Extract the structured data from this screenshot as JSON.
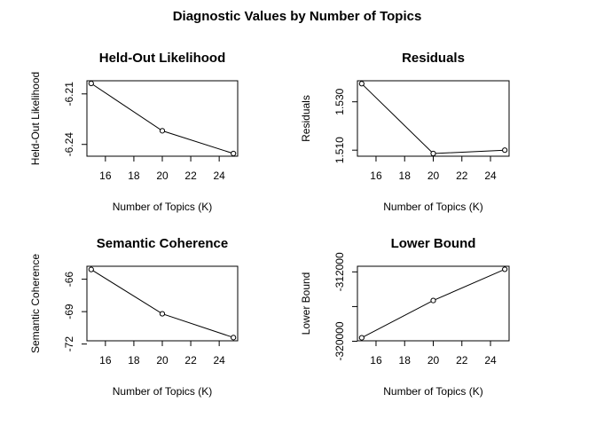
{
  "title": "Diagnostic Values by Number of Topics",
  "chart_data": [
    {
      "type": "line",
      "title": "Held-Out Likelihood",
      "xlabel": "Number of Topics (K)",
      "ylabel": "Held-Out Likelihood",
      "x": [
        15,
        20,
        25
      ],
      "values": [
        -6.2038,
        -6.2319,
        -6.2454
      ],
      "xticks": [
        16,
        18,
        20,
        22,
        24
      ],
      "xtick_labels": [
        "16",
        "18",
        "20",
        "22",
        "24"
      ],
      "yticks": [
        -6.21,
        -6.24
      ],
      "ytick_labels": [
        "-6.21",
        "-6.24"
      ],
      "xlim": [
        14.7,
        25.3
      ],
      "ylim": [
        -6.247,
        -6.2022
      ]
    },
    {
      "type": "line",
      "title": "Residuals",
      "xlabel": "Number of Topics (K)",
      "ylabel": "Residuals",
      "x": [
        15,
        20,
        25
      ],
      "values": [
        1.5375,
        1.5086,
        1.51
      ],
      "xticks": [
        16,
        18,
        20,
        22,
        24
      ],
      "xtick_labels": [
        "16",
        "18",
        "20",
        "22",
        "24"
      ],
      "yticks": [
        1.51,
        1.53
      ],
      "ytick_labels": [
        "1.510",
        "1.530"
      ],
      "xlim": [
        14.7,
        25.3
      ],
      "ylim": [
        1.5075,
        1.5387
      ]
    },
    {
      "type": "line",
      "title": "Semantic Coherence",
      "xlabel": "Number of Topics (K)",
      "ylabel": "Semantic Coherence",
      "x": [
        15,
        20,
        25
      ],
      "values": [
        -65.1,
        -69.2,
        -71.4
      ],
      "xticks": [
        16,
        18,
        20,
        22,
        24
      ],
      "xtick_labels": [
        "16",
        "18",
        "20",
        "22",
        "24"
      ],
      "yticks": [
        -66,
        -69,
        -72
      ],
      "ytick_labels": [
        "-66",
        "-69",
        "-72"
      ],
      "xlim": [
        14.7,
        25.3
      ],
      "ylim": [
        -71.7,
        -64.8
      ]
    },
    {
      "type": "line",
      "title": "Lower Bound",
      "xlabel": "Number of Topics (K)",
      "ylabel": "Lower Bound",
      "x": [
        15,
        20,
        25
      ],
      "values": [
        -319600,
        -315300,
        -311700
      ],
      "xticks": [
        16,
        18,
        20,
        22,
        24
      ],
      "xtick_labels": [
        "16",
        "18",
        "20",
        "22",
        "24"
      ],
      "yticks": [
        -312000,
        -316000,
        -320000
      ],
      "ytick_labels": [
        "-312000",
        "",
        "-320000"
      ],
      "xlim": [
        14.7,
        25.3
      ],
      "ylim": [
        -319950,
        -311350
      ]
    }
  ]
}
